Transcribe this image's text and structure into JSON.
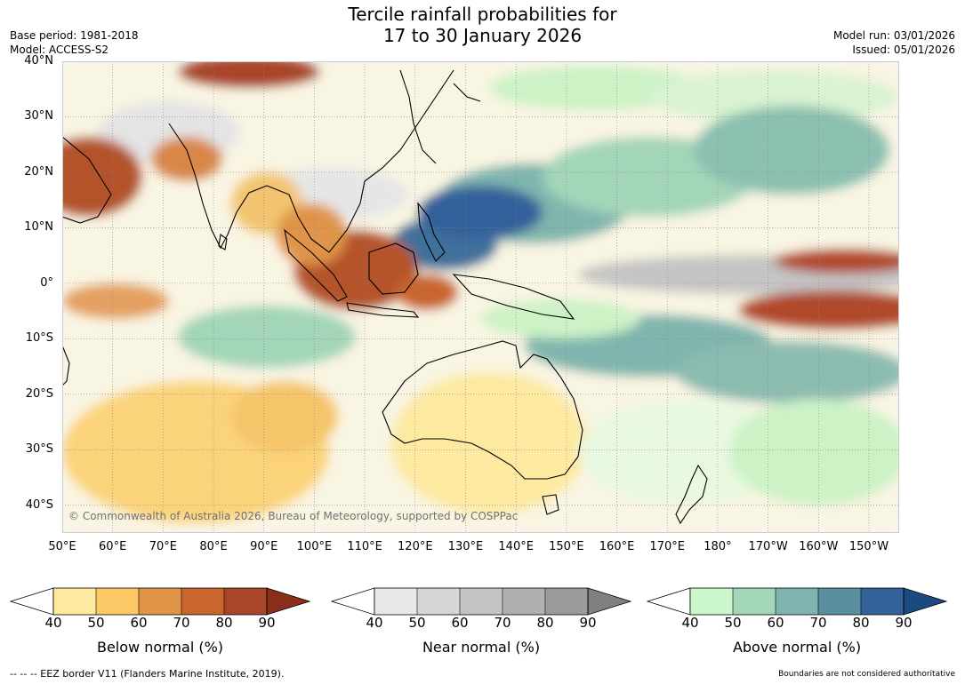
{
  "title_line1": "Tercile rainfall probabilities for",
  "title_line2": "17 to 30 January 2026",
  "base_period": "Base period: 1981-2018",
  "model": "Model: ACCESS-S2",
  "model_run": "Model run: 03/01/2026",
  "issued": "Issued: 05/01/2026",
  "copyright": "© Commonwealth of Australia 2026, Bureau of Meteorology, supported by COSPPac",
  "footer_left": "--  --  -- EEZ border V11 (Flanders Marine Institute, 2019).",
  "footer_right": "Boundaries are not considered authoritative",
  "lat_labels": [
    {
      "text": "40°N",
      "lat": 40
    },
    {
      "text": "30°N",
      "lat": 30
    },
    {
      "text": "20°N",
      "lat": 20
    },
    {
      "text": "10°N",
      "lat": 10
    },
    {
      "text": "0°",
      "lat": 0
    },
    {
      "text": "10°S",
      "lat": -10
    },
    {
      "text": "20°S",
      "lat": -20
    },
    {
      "text": "30°S",
      "lat": -30
    },
    {
      "text": "40°S",
      "lat": -40
    }
  ],
  "lon_labels": [
    {
      "text": "50°E",
      "lon": 50
    },
    {
      "text": "60°E",
      "lon": 60
    },
    {
      "text": "70°E",
      "lon": 70
    },
    {
      "text": "80°E",
      "lon": 80
    },
    {
      "text": "90°E",
      "lon": 90
    },
    {
      "text": "100°E",
      "lon": 100
    },
    {
      "text": "110°E",
      "lon": 110
    },
    {
      "text": "120°E",
      "lon": 120
    },
    {
      "text": "130°E",
      "lon": 130
    },
    {
      "text": "140°E",
      "lon": 140
    },
    {
      "text": "150°E",
      "lon": 150
    },
    {
      "text": "160°E",
      "lon": 160
    },
    {
      "text": "170°E",
      "lon": 170
    },
    {
      "text": "180°",
      "lon": 180
    },
    {
      "text": "170°W",
      "lon": 190
    },
    {
      "text": "160°W",
      "lon": 200
    },
    {
      "text": "150°W",
      "lon": 210
    }
  ],
  "map_extent": {
    "lon_min": 50,
    "lon_max": 216,
    "lat_min": -45,
    "lat_max": 40
  },
  "colorbars": [
    {
      "label": "Below normal (%)",
      "ticks": [
        "40",
        "50",
        "60",
        "70",
        "80",
        "90"
      ],
      "colors": [
        "#ffffff",
        "#fde9a0",
        "#fbc865",
        "#e09448",
        "#c9652f",
        "#a8452a",
        "#8c2f1a"
      ]
    },
    {
      "label": "Near normal (%)",
      "ticks": [
        "40",
        "50",
        "60",
        "70",
        "80",
        "90"
      ],
      "colors": [
        "#ffffff",
        "#e8e8e8",
        "#d6d6d6",
        "#c4c4c4",
        "#b0b0b0",
        "#9c9c9c",
        "#808080"
      ]
    },
    {
      "label": "Above normal (%)",
      "ticks": [
        "40",
        "50",
        "60",
        "70",
        "80",
        "90"
      ],
      "colors": [
        "#ffffff",
        "#ccf7cc",
        "#a3d6b8",
        "#7fb5ae",
        "#5a8fa0",
        "#33619a",
        "#1a4a80"
      ]
    }
  ]
}
